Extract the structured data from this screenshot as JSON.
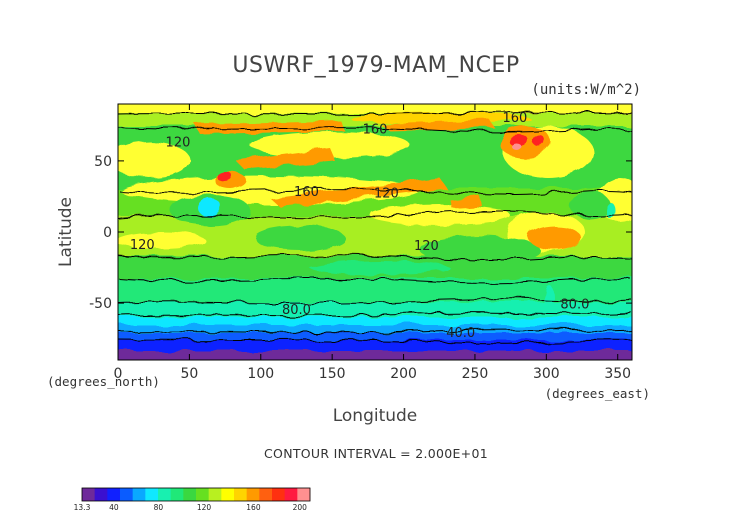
{
  "chart_data": {
    "type": "heatmap",
    "title": "USWRF_1979-MAM_NCEP",
    "units_label": "(units:W/m^2)",
    "xlabel": "Longitude",
    "ylabel": "Latitude",
    "x_sublabel": "(degrees_east)",
    "y_sublabel": "(degrees_north)",
    "xlim": [
      0,
      360
    ],
    "ylim": [
      -90,
      90
    ],
    "x_ticks": [
      0,
      50,
      100,
      150,
      200,
      250,
      300,
      350
    ],
    "y_ticks": [
      -50,
      0,
      50
    ],
    "contour_interval_text": "CONTOUR INTERVAL = 2.000E+01",
    "contour_labels": [
      {
        "text": "160",
        "lon": 180,
        "lat": 72
      },
      {
        "text": "160",
        "lon": 278,
        "lat": 80
      },
      {
        "text": "120",
        "lon": 42,
        "lat": 63
      },
      {
        "text": "160",
        "lon": 132,
        "lat": 28
      },
      {
        "text": "120",
        "lon": 188,
        "lat": 27
      },
      {
        "text": "120",
        "lon": 17,
        "lat": -9
      },
      {
        "text": "120",
        "lon": 216,
        "lat": -10
      },
      {
        "text": "80.0",
        "lon": 125,
        "lat": -55
      },
      {
        "text": "80.0",
        "lon": 320,
        "lat": -51
      },
      {
        "text": "40.0",
        "lon": 240,
        "lat": -71
      }
    ],
    "colorbar": {
      "min_label": "13.3",
      "tick_labels": [
        "40",
        "80",
        "120",
        "160",
        "200"
      ],
      "colors": [
        "#6e2a9a",
        "#3a10d0",
        "#1020ff",
        "#0a5cff",
        "#0aa8ff",
        "#10e8ff",
        "#18f0b0",
        "#20e878",
        "#3ad840",
        "#66e020",
        "#b8f020",
        "#ffff00",
        "#ffd400",
        "#ff9a00",
        "#ff6010",
        "#ff3010",
        "#ff1a40",
        "#ff9090"
      ]
    }
  }
}
